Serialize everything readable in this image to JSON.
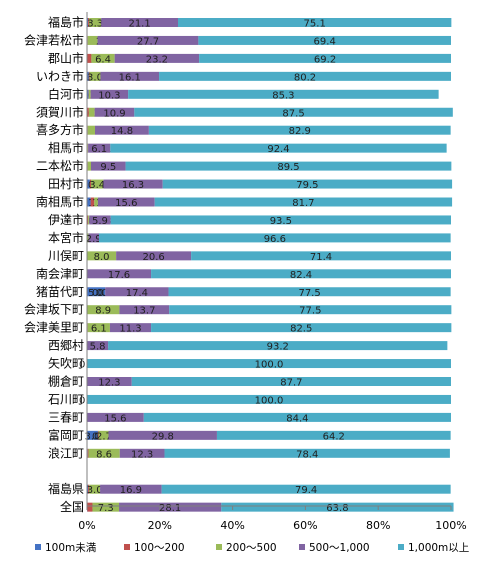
{
  "chart_data": {
    "type": "bar",
    "orientation": "horizontal",
    "stacked": true,
    "percent_stacked": true,
    "xlim": [
      0,
      100
    ],
    "x_ticks": [
      "0%",
      "20%",
      "40%",
      "60%",
      "80%",
      "100%"
    ],
    "grid": false,
    "legend_position": "bottom",
    "categories": [
      "福島市",
      "会津若松市",
      "郡山市",
      "いわき市",
      "白河市",
      "須賀川市",
      "喜多方市",
      "相馬市",
      "二本松市",
      "田村市",
      "南相馬市",
      "伊達市",
      "本宮市",
      "川俣町",
      "南会津町",
      "猪苗代町",
      "会津坂下町",
      "会津美里町",
      "西郷村",
      "矢吹町",
      "棚倉町",
      "石川町",
      "三春町",
      "富岡町",
      "浪江町",
      "",
      "福島県",
      "全国"
    ],
    "series": [
      {
        "name": "100m未満",
        "color": "#4472c4",
        "values": [
          0.3,
          0.1,
          0.1,
          0.5,
          0.4,
          0.1,
          0.1,
          0.1,
          0.1,
          0.8,
          1.0,
          0.1,
          0.0,
          0.0,
          0.0,
          5.0,
          0.0,
          0.1,
          0.0,
          0.0,
          0.0,
          0.0,
          0.0,
          3.0,
          0.2,
          null,
          0.3,
          0.1
        ],
        "labels": [
          "0.3",
          "0.1",
          "0.1",
          "0.5",
          "0.4",
          "0.1",
          "0.1",
          "0.1",
          "0.1",
          "0.8",
          "1.0",
          "0.1",
          "0.0",
          "0.0",
          "0.0",
          "5.0",
          "0.0",
          "0.1",
          "0.0",
          "0.0",
          "0.0",
          "0.0",
          "0.0",
          "3.0",
          "0.2",
          "",
          "0.3",
          "0.1"
        ]
      },
      {
        "name": "100～200",
        "color": "#c0504d",
        "values": [
          0.3,
          0.1,
          1.1,
          0.2,
          0.1,
          0.4,
          0.1,
          0.1,
          0.1,
          0.3,
          1.0,
          0.2,
          0.0,
          0.0,
          0.0,
          0.0,
          0.0,
          0.1,
          0.0,
          0.0,
          0.0,
          0.0,
          0.0,
          0.2,
          0.2,
          null,
          0.3,
          1.4
        ],
        "labels": [
          "0.3",
          "0.1",
          "1.1",
          "0.2",
          "0.1",
          "0.4",
          "0.1",
          "0.1",
          "0.1",
          "0.3",
          "1.0",
          "0.2",
          "0.0",
          "0.0",
          "0.0",
          "0.0",
          "0.0",
          "0.1",
          "0.0",
          "0.0",
          "0.0",
          "0.0",
          "0.0",
          "0.2",
          "0.2",
          "",
          "0.3",
          "1.4"
        ]
      },
      {
        "name": "200～500",
        "color": "#9bbb59",
        "values": [
          3.3,
          2.7,
          6.4,
          3.0,
          0.5,
          1.6,
          2.0,
          0.1,
          0.9,
          3.4,
          1.0,
          0.3,
          0.4,
          8.0,
          0.0,
          0.0,
          8.9,
          6.1,
          0.0,
          0.0,
          0.0,
          0.0,
          0.0,
          2.7,
          8.6,
          null,
          3.0,
          7.3
        ],
        "labels": [
          "3.3",
          "2.7",
          "6.4",
          "3.0",
          "0.5",
          "1.6",
          "2.0",
          "0.1",
          "0.9",
          "3.4",
          "1.0",
          "0.3",
          "0.4",
          "8.0",
          "0.0",
          "0.0",
          "8.9",
          "6.1",
          "0.0",
          "0.0",
          "0.0",
          "0.0",
          "0.0",
          "2.7",
          "8.6",
          "",
          "3.0",
          "7.3"
        ]
      },
      {
        "name": "500～1,000",
        "color": "#8064a2",
        "values": [
          21.1,
          27.7,
          23.2,
          16.1,
          10.3,
          10.9,
          14.8,
          6.1,
          9.5,
          16.3,
          15.6,
          5.9,
          2.9,
          20.6,
          17.6,
          17.4,
          13.7,
          11.3,
          5.8,
          0.0,
          12.3,
          0.0,
          15.6,
          29.8,
          12.3,
          null,
          16.9,
          28.1
        ],
        "labels": [
          "21.1",
          "27.7",
          "23.2",
          "16.1",
          "10.3",
          "10.9",
          "14.8",
          "6.1",
          "9.5",
          "16.3",
          "15.6",
          "5.9",
          "2.9",
          "20.6",
          "17.6",
          "17.4",
          "13.7",
          "11.3",
          "5.8",
          "0.0",
          "12.3",
          "0.0",
          "15.6",
          "29.8",
          "12.3",
          "",
          "16.9",
          "28.1"
        ]
      },
      {
        "name": "1,000m以上",
        "color": "#4bacc6",
        "values": [
          75.1,
          69.4,
          69.2,
          80.2,
          85.3,
          87.5,
          82.9,
          92.4,
          89.5,
          79.5,
          81.7,
          93.5,
          96.6,
          71.4,
          82.4,
          77.5,
          77.5,
          82.5,
          93.2,
          100.0,
          87.7,
          100.0,
          84.4,
          64.2,
          78.4,
          null,
          79.4,
          63.8
        ],
        "labels": [
          "75.1",
          "69.4",
          "69.2",
          "80.2",
          "85.3",
          "87.5",
          "82.9",
          "92.4",
          "89.5",
          "79.5",
          "81.7",
          "93.5",
          "96.6",
          "71.4",
          "82.4",
          "77.5",
          "77.5",
          "82.5",
          "93.2",
          "100.0",
          "87.7",
          "100.0",
          "84.4",
          "64.2",
          "78.4",
          "",
          "79.4",
          "63.8"
        ]
      }
    ]
  }
}
